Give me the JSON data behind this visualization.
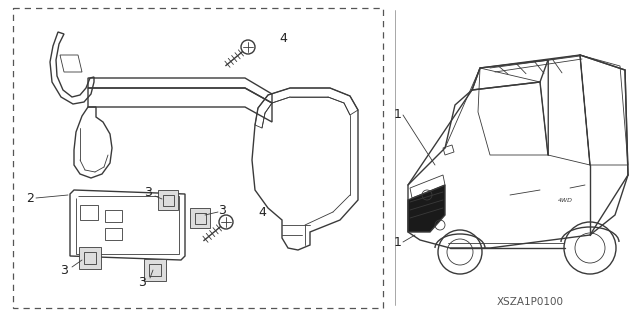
{
  "bg_color": "#ffffff",
  "part_number": "XSZA1P0100",
  "line_color": "#3a3a3a",
  "text_color": "#222222",
  "font_size_label": 8.5,
  "font_size_partnum": 7.5,
  "figsize": [
    6.4,
    3.19
  ],
  "dpi": 100
}
